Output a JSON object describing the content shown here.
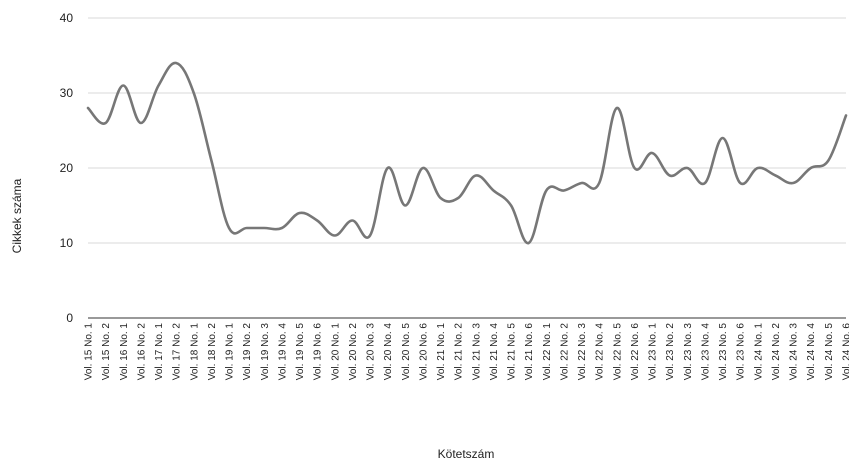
{
  "chart_data": {
    "type": "line",
    "title": "",
    "xlabel": "Kötetszám",
    "ylabel": "Cikkek száma",
    "ylim": [
      0,
      40
    ],
    "yticks": [
      0,
      10,
      20,
      30,
      40
    ],
    "grid": true,
    "legend": "none",
    "categories": [
      "Vol. 15 No. 1",
      "Vol. 15 No. 2",
      "Vol. 16 No. 1",
      "Vol. 16 No. 2",
      "Vol. 17 No. 1",
      "Vol. 17 No. 2",
      "Vol. 18 No. 1",
      "Vol. 18 No. 2",
      "Vol. 19 No. 1",
      "Vol. 19 No. 2",
      "Vol. 19 No. 3",
      "Vol. 19 No. 4",
      "Vol. 19 No. 5",
      "Vol. 19 No. 6",
      "Vol. 20 No. 1",
      "Vol. 20 No. 2",
      "Vol. 20 No. 3",
      "Vol. 20 No. 4",
      "Vol. 20 No. 5",
      "Vol. 20 No. 6",
      "Vol. 21 No. 1",
      "Vol. 21 No. 2",
      "Vol. 21 No. 3",
      "Vol. 21 No. 4",
      "Vol. 21 No. 5",
      "Vol. 21 No. 6",
      "Vol. 22 No. 1",
      "Vol. 22 No. 2",
      "Vol. 22 No. 3",
      "Vol. 22 No. 4",
      "Vol. 22 No. 5",
      "Vol. 22 No. 6",
      "Vol. 23 No. 1",
      "Vol. 23 No. 2",
      "Vol. 23 No. 3",
      "Vol. 23 No. 4",
      "Vol. 23 No. 5",
      "Vol. 23 No. 6",
      "Vol. 24 No. 1",
      "Vol. 24 No. 2",
      "Vol. 24 No. 3",
      "Vol. 24 No. 4",
      "Vol. 24 No. 5",
      "Vol. 24 No. 6"
    ],
    "series": [
      {
        "color": "#777777",
        "values": [
          28,
          26,
          31,
          26,
          31,
          34,
          30,
          21,
          12,
          12,
          12,
          12,
          14,
          13,
          11,
          13,
          11,
          20,
          15,
          20,
          16,
          16,
          19,
          17,
          15,
          10,
          17,
          17,
          18,
          18,
          28,
          20,
          22,
          19,
          20,
          18,
          24,
          18,
          20,
          19,
          18,
          20,
          21,
          27
        ]
      }
    ]
  }
}
